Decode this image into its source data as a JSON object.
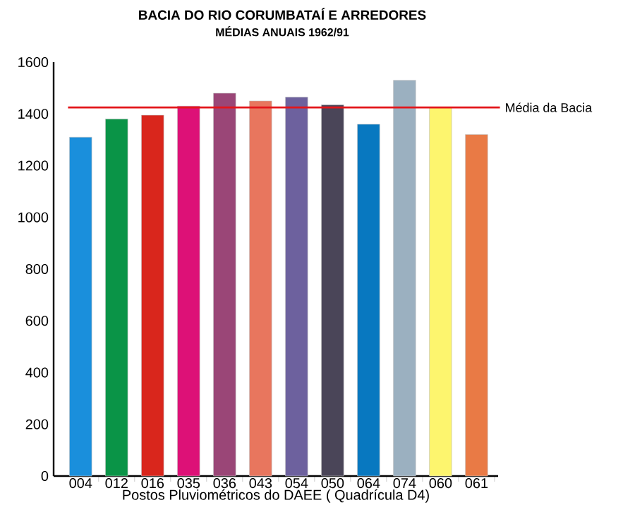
{
  "chart_data": {
    "type": "bar",
    "title": "BACIA DO RIO CORUMBATAÍ E ARREDORES",
    "subtitle": "MÉDIAS ANUAIS 1962/91",
    "xlabel": "Postos Pluviométricos do DAEE ( Quadrícula D4)",
    "categories": [
      "004",
      "012",
      "016",
      "035",
      "036",
      "043",
      "054",
      "050",
      "064",
      "074",
      "060",
      "061"
    ],
    "values": [
      1310,
      1380,
      1395,
      1430,
      1480,
      1450,
      1465,
      1435,
      1360,
      1530,
      1425,
      1320
    ],
    "colors": [
      "#1a8fdc",
      "#0a9447",
      "#d9261c",
      "#dd1177",
      "#9a4677",
      "#e8765e",
      "#6d619e",
      "#4a4558",
      "#0878c0",
      "#9bb0c0",
      "#fdf56e",
      "#e97a45"
    ],
    "ylim": [
      0,
      1600
    ],
    "yticks": [
      0,
      200,
      400,
      600,
      800,
      1000,
      1200,
      1400,
      1600
    ],
    "grid": false,
    "ref_lines": [
      {
        "axis": "y",
        "value": 1425,
        "label": "Média da Bacia",
        "color": "#e3161b"
      }
    ]
  }
}
